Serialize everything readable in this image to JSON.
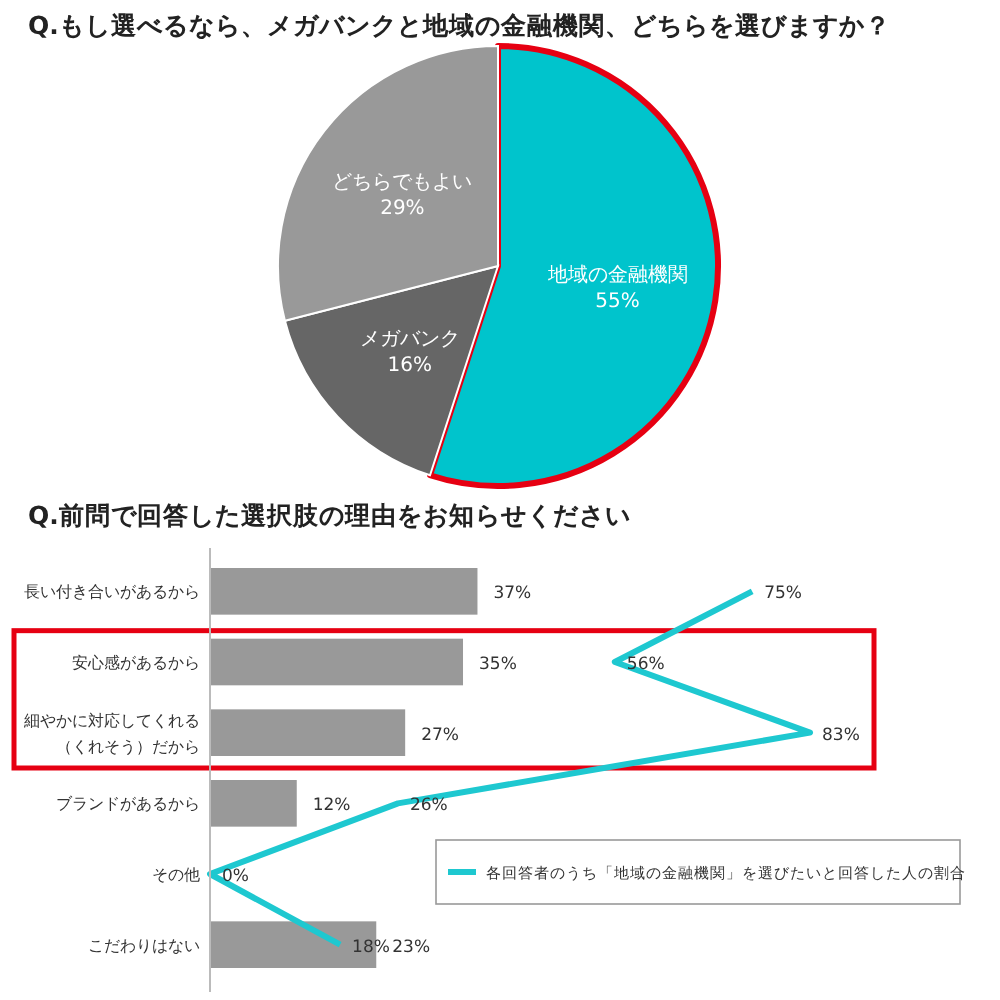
{
  "chart_data": [
    {
      "type": "pie",
      "title": "Q.もし選べるなら、メガバンクと地域の金融機関、どちらを選びますか？",
      "categories": [
        "地域の金融機関",
        "メガバンク",
        "どちらでもよい"
      ],
      "values": [
        55,
        16,
        29
      ],
      "colors": [
        "#00c4cc",
        "#666666",
        "#999999"
      ],
      "value_labels": [
        "55%",
        "16%",
        "29%"
      ]
    },
    {
      "type": "bar",
      "orientation": "horizontal",
      "title": "Q.前問で回答した選択肢の理由をお知らせください",
      "categories": [
        "長い付き合いがあるから",
        "安心感があるから",
        "細やかに対応してくれる（くれそう）だから",
        "ブランドがあるから",
        "その他",
        "こだわりはない"
      ],
      "series": [
        {
          "type": "bar",
          "color": "#999999",
          "values": [
            37,
            35,
            27,
            12,
            null,
            23
          ],
          "value_labels": [
            "37%",
            "35%",
            "27%",
            "12%",
            null,
            "23%"
          ]
        },
        {
          "type": "line",
          "name": "各回答者のうち「地域の金融機関」を選びたいと回答した人の割合",
          "color": "#1ec8d0",
          "values": [
            75,
            56,
            83,
            26,
            0,
            18
          ],
          "value_labels": [
            "75%",
            "56%",
            "83%",
            "26%",
            "0%",
            "18%"
          ]
        }
      ],
      "legend": "bottom right",
      "marker": "none"
    }
  ]
}
